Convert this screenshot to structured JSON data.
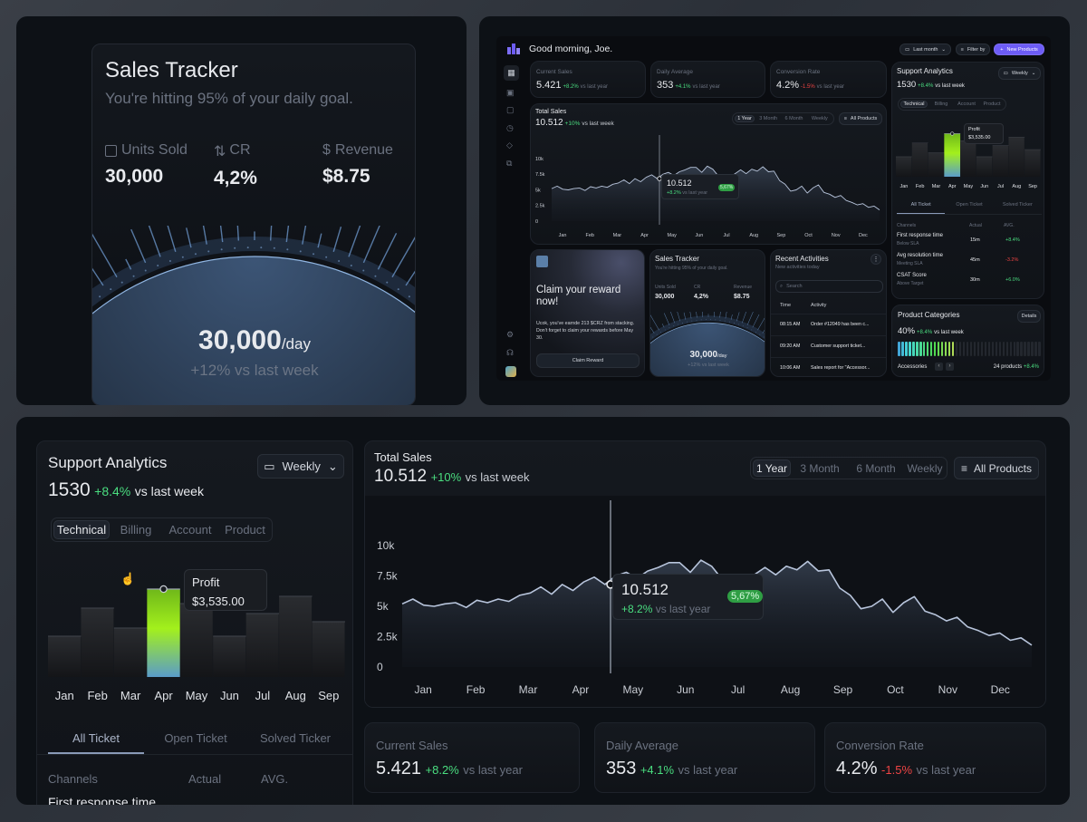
{
  "sales_tracker": {
    "title": "Sales Tracker",
    "subtitle": "You're hitting 95% of your daily goal.",
    "metrics": [
      {
        "label": "Units Sold",
        "icon": "chart-icon",
        "value": "30,000"
      },
      {
        "label": "CR",
        "icon": "arrows-up-down-icon",
        "value": "4,2%"
      },
      {
        "label": "Revenue",
        "icon": "dollar-icon",
        "value": "$8.75"
      }
    ],
    "daily_value": "30,000",
    "daily_unit": "/day",
    "daily_change": "+12% vs last week"
  },
  "dashboard": {
    "greeting": "Good morning, Joe.",
    "buttons": {
      "last_month": "Last month",
      "filter_by": "Filter by",
      "new_products": "New Products"
    },
    "accent": "#6d5cf6",
    "claim": {
      "title": "Claim your reward now!",
      "body": "Ucok, you've earnde 213 $CRZ from stacking. Don't forget to claim your rewards before May 30.",
      "button": "Claim Reward"
    },
    "mini_tracker": {
      "subtitle": "You're hitting 95% of your daily goal."
    },
    "recent": {
      "title": "Recent Activities",
      "subtitle": "New activities today",
      "search_placeholder": "Search",
      "col_time": "Time",
      "col_activity": "Activity",
      "rows": [
        {
          "time": "08:15 AM",
          "activity": "Order #12049 has been c..."
        },
        {
          "time": "09:20 AM",
          "activity": "Customer support ticket..."
        },
        {
          "time": "10:06 AM",
          "activity": "Sales report for \"Accessor..."
        }
      ]
    },
    "product_categories": {
      "title": "Product Categories",
      "details": "Details",
      "value": "40%",
      "change": "+8.4%",
      "suffix": "vs last week",
      "fill_fraction": 0.4,
      "category": "Accessories",
      "count": "24 products",
      "count_change": "+8.4%"
    }
  },
  "stats": [
    {
      "label": "Current Sales",
      "value": "5.421",
      "change": "+8.2%",
      "dir": "up",
      "suffix": "vs last year"
    },
    {
      "label": "Daily Average",
      "value": "353",
      "change": "+4.1%",
      "dir": "up",
      "suffix": "vs last year"
    },
    {
      "label": "Conversion Rate",
      "value": "4.2%",
      "change": "-1.5%",
      "dir": "down",
      "suffix": "vs last year"
    }
  ],
  "total_sales": {
    "title": "Total Sales",
    "value": "10.512",
    "change": "+10%",
    "suffix": "vs last week",
    "ranges": [
      "1 Year",
      "3 Month",
      "6 Month",
      "Weekly"
    ],
    "active_range": "1 Year",
    "filter": "All Products",
    "tooltip": {
      "value": "10.512",
      "change": "+8.2%",
      "suffix": "vs last year",
      "badge": "5,67%"
    }
  },
  "support": {
    "title": "Support Analytics",
    "period": "Weekly",
    "value": "1530",
    "change": "+8.4%",
    "suffix": "vs last week",
    "tabs": [
      "Technical",
      "Billing",
      "Account",
      "Product"
    ],
    "tooltip": {
      "label": "Profit",
      "value": "$3,535.00"
    },
    "ticket_tabs": [
      "All Ticket",
      "Open Ticket",
      "Solved Ticker"
    ],
    "columns": [
      "Channels",
      "Actual",
      "AVG."
    ],
    "rows": [
      {
        "name": "First response time",
        "sub": "Below SLA",
        "actual": "15m",
        "avg": "+8.4%",
        "dir": "up"
      },
      {
        "name": "Avg resolution time",
        "sub": "Meeting SLA",
        "actual": "45m",
        "avg": "-3.2%",
        "dir": "down"
      },
      {
        "name": "CSAT Score",
        "sub": "Above Target",
        "actual": "30m",
        "avg": "+6.0%",
        "dir": "up"
      }
    ]
  },
  "chart_data": [
    {
      "type": "line",
      "title": "Total Sales",
      "x_labels": [
        "Jan",
        "Feb",
        "Mar",
        "Apr",
        "May",
        "Jun",
        "Jul",
        "Aug",
        "Sep",
        "Oct",
        "Nov",
        "Dec"
      ],
      "y_ticks": [
        "0",
        "2.5k",
        "5k",
        "7.5k",
        "10k"
      ],
      "ylim": [
        0,
        10
      ],
      "values": [
        5.2,
        5.6,
        5.1,
        5.0,
        5.2,
        5.3,
        4.9,
        5.5,
        5.3,
        5.6,
        5.4,
        5.9,
        6.1,
        6.6,
        6.0,
        6.8,
        6.3,
        7.0,
        7.4,
        6.8,
        7.5,
        7.8,
        7.3,
        7.9,
        8.2,
        8.6,
        8.6,
        7.8,
        8.8,
        8.3,
        7.2,
        6.1,
        7.0,
        7.6,
        8.2,
        7.6,
        8.3,
        8.0,
        8.7,
        7.9,
        8.0,
        6.5,
        5.9,
        4.8,
        5.0,
        5.6,
        4.5,
        5.3,
        5.8,
        4.6,
        4.3,
        3.8,
        4.1,
        3.3,
        3.0,
        2.6,
        2.8,
        2.2,
        2.4,
        1.8
      ],
      "highlight_index": 19
    },
    {
      "type": "bar",
      "title": "Support Analytics",
      "categories": [
        "Jan",
        "Feb",
        "Mar",
        "Apr",
        "May",
        "Jun",
        "Jul",
        "Aug",
        "Sep"
      ],
      "values": [
        45,
        76,
        54,
        97,
        81,
        45,
        70,
        89,
        61
      ],
      "ylim": [
        0,
        100
      ],
      "highlight": "Apr"
    }
  ]
}
